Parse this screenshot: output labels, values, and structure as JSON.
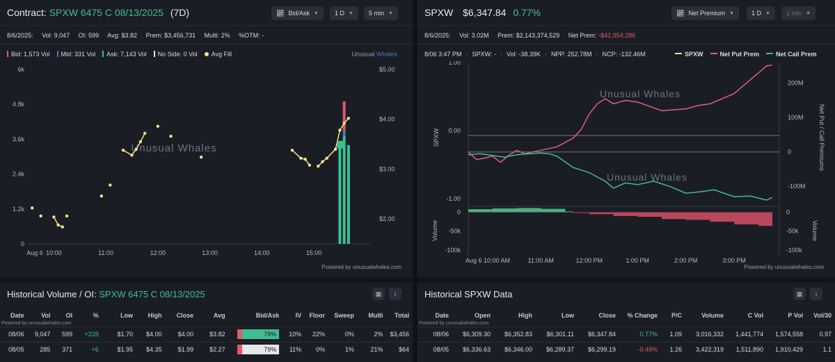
{
  "contract_panel": {
    "title_prefix": "Contract:",
    "contract": "SPXW 6475 C 08/13/2025",
    "dte": "(7D)",
    "controls": {
      "chart_type": "Bid/Ask",
      "range": "1 D",
      "interval": "5 min"
    },
    "stats": {
      "date": "8/6/2025:",
      "vol": "Vol: 9,047",
      "oi": "OI: 599",
      "avg": "Avg: $3.82",
      "prem": "Prem: $3,456,731",
      "multi": "Multi: 2%",
      "otm": "%OTM: -"
    },
    "legend": {
      "bid": "Bid: 1,573 Vol",
      "mid": "Mid: 331 Vol",
      "ask": "Ask: 7,143 Vol",
      "no_side": "No Side: 0 Vol",
      "avg_fill": "Avg Fill"
    },
    "brand_a": "Unusual",
    "brand_b": "Whales",
    "watermark": "Unusual Whales",
    "powered": "Powered by unusualwhales.com",
    "colors": {
      "bid": "#e05a6a",
      "mid": "#4b79b5",
      "ask": "#3fbf91",
      "avg_fill": "#f2e28b"
    }
  },
  "spxw_panel": {
    "ticker": "SPXW",
    "price": "$6,347.84",
    "change": "0.77%",
    "controls": {
      "metric": "Net Premium",
      "range": "1 D",
      "interval": "1 min"
    },
    "stats": {
      "date": "8/6/2025:",
      "vol": "Vol: 3.02M",
      "prem": "Prem: $2,143,374,529",
      "net_prem_label": "Net Prem:",
      "net_prem_value": "-$41,954,286"
    },
    "tooltip": {
      "time": "8/06 3:47 PM",
      "spxw": "SPXW: -",
      "vol": "Vol: -38.39K",
      "npp": "NPP: 252.78M",
      "ncp": "NCP: -132.46M"
    },
    "legend": {
      "spxw": "SPXW",
      "npp": "Net Put Prem",
      "ncp": "Net Call Prem"
    },
    "watermark": "Unusual Whales",
    "powered": "Powered by unusualwhales.com",
    "colors": {
      "spxw": "#f2e28b",
      "npp": "#e0607a",
      "ncp": "#3fbf91"
    }
  },
  "hist_contract": {
    "title_prefix": "Historical Volume / OI:",
    "contract": "SPXW 6475 C 08/13/2025",
    "powered": "Powered by unusualwhales.com",
    "columns": [
      "Date",
      "Vol",
      "OI",
      "%",
      "Low",
      "High",
      "Close",
      "Avg",
      "Bid/Ask",
      "IV",
      "Floor",
      "Sweep",
      "Multi",
      "Total"
    ],
    "rows": [
      {
        "date": "08/06",
        "vol": "9,047",
        "oi": "599",
        "chg": "+228",
        "low": "$1.70",
        "high": "$4.00",
        "close": "$4.00",
        "avg": "$3.82",
        "ba": "79%",
        "iv": "10%",
        "floor": "22%",
        "sweep": "0%",
        "multi": "2%",
        "total": "$3,456"
      },
      {
        "date": "08/05",
        "vol": "285",
        "oi": "371",
        "chg": "+6",
        "low": "$1.95",
        "high": "$4.35",
        "close": "$1.99",
        "avg": "$2.27",
        "ba": "79%",
        "iv": "11%",
        "floor": "0%",
        "sweep": "1%",
        "multi": "21%",
        "total": "$64"
      }
    ]
  },
  "hist_spxw": {
    "title": "Historical SPXW Data",
    "powered": "Powered by unusualwhales.com",
    "columns": [
      "Date",
      "Open",
      "High",
      "Low",
      "Close",
      "% Change",
      "P/C",
      "Volume",
      "C Vol",
      "P Vol",
      "Vol/30"
    ],
    "rows": [
      {
        "date": "08/06",
        "open": "$6,309.30",
        "high": "$6,352.83",
        "low": "$6,301.11",
        "close": "$6,347.84",
        "chg": "0.77%",
        "pc": "1.09",
        "volume": "3,016,332",
        "cvol": "1,441,774",
        "pvol": "1,574,558",
        "v30": "0.97"
      },
      {
        "date": "08/05",
        "open": "$6,336.63",
        "high": "$6,346.00",
        "low": "$6,289.37",
        "close": "$6,299.19",
        "chg": "-0.49%",
        "pc": "1.26",
        "volume": "3,422,319",
        "cvol": "1,511,890",
        "pvol": "1,910,429",
        "v30": "1.1"
      }
    ]
  },
  "chart_data": [
    {
      "type": "scatter",
      "title": "",
      "x_ticks": [
        "Aug 6",
        "10:00",
        "11:00",
        "12:00",
        "13:00",
        "14:00",
        "15:00"
      ],
      "y_left_ticks": [
        "0",
        "1.2k",
        "2.4k",
        "3.6k",
        "4.8k",
        "6k"
      ],
      "y_right_ticks": [
        "$2.00",
        "$3.00",
        "$4.00",
        "$5.00"
      ],
      "ylim_volume": [
        0,
        6000
      ],
      "ylim_price": [
        1.5,
        5.0
      ],
      "series": [
        {
          "name": "Avg Fill",
          "points": [
            [
              "09:35",
              2.22
            ],
            [
              "09:45",
              2.06
            ],
            [
              "10:00",
              2.04
            ],
            [
              "10:05",
              1.88
            ],
            [
              "10:10",
              1.84
            ],
            [
              "10:15",
              2.06
            ],
            [
              "10:55",
              2.46
            ],
            [
              "11:05",
              2.68
            ],
            [
              "11:20",
              3.38
            ],
            [
              "11:30",
              3.28
            ],
            [
              "11:35",
              3.4
            ],
            [
              "11:40",
              3.55
            ],
            [
              "11:45",
              3.72
            ],
            [
              "12:00",
              3.86
            ],
            [
              "12:15",
              3.66
            ],
            [
              "12:50",
              3.24
            ],
            [
              "14:35",
              3.38
            ],
            [
              "14:45",
              3.22
            ],
            [
              "14:50",
              3.2
            ],
            [
              "14:55",
              3.08
            ],
            [
              "15:05",
              3.06
            ],
            [
              "15:10",
              3.15
            ],
            [
              "15:15",
              3.22
            ],
            [
              "15:25",
              3.4
            ],
            [
              "15:30",
              3.78
            ],
            [
              "15:35",
              3.92
            ],
            [
              "15:40",
              4.02
            ]
          ]
        }
      ],
      "volume_bars": [
        {
          "time": "15:30",
          "bid": 0,
          "mid": 0,
          "ask": 3300
        },
        {
          "time": "15:35",
          "bid": 1000,
          "mid": 200,
          "ask": 3700
        },
        {
          "time": "15:40",
          "bid": 0,
          "mid": 0,
          "ask": 3400
        }
      ]
    },
    {
      "type": "line",
      "title": "",
      "x_ticks": [
        "Aug 6 10:00 AM",
        "11:00 AM",
        "12:00 PM",
        "1:00 PM",
        "2:00 PM",
        "3:00 PM"
      ],
      "y_left_label": "SPXW",
      "y_left_ticks": [
        "-1.00",
        "0.00",
        "1.00"
      ],
      "y_right_label": "Net Put / Call Premiums",
      "y_right_ticks": [
        "-100M",
        "0",
        "100M",
        "200M"
      ],
      "ylim_premium": [
        -150,
        260
      ],
      "series": [
        {
          "name": "Net Put Prem",
          "points": [
            [
              "09:30",
              0
            ],
            [
              "09:40",
              -22
            ],
            [
              "09:50",
              -18
            ],
            [
              "10:00",
              -12
            ],
            [
              "10:10",
              -30
            ],
            [
              "10:20",
              -10
            ],
            [
              "10:30",
              5
            ],
            [
              "10:40",
              -5
            ],
            [
              "11:00",
              5
            ],
            [
              "11:20",
              15
            ],
            [
              "11:40",
              40
            ],
            [
              "11:50",
              65
            ],
            [
              "12:00",
              110
            ],
            [
              "12:10",
              140
            ],
            [
              "12:20",
              155
            ],
            [
              "12:30",
              140
            ],
            [
              "12:45",
              150
            ],
            [
              "13:00",
              145
            ],
            [
              "13:30",
              120
            ],
            [
              "14:00",
              125
            ],
            [
              "14:15",
              135
            ],
            [
              "14:30",
              140
            ],
            [
              "14:45",
              155
            ],
            [
              "15:00",
              170
            ],
            [
              "15:15",
              200
            ],
            [
              "15:30",
              230
            ],
            [
              "15:40",
              250
            ],
            [
              "15:47",
              252.78
            ]
          ]
        },
        {
          "name": "Net Call Prem",
          "points": [
            [
              "09:30",
              -8
            ],
            [
              "09:45",
              -5
            ],
            [
              "10:00",
              -10
            ],
            [
              "10:15",
              -15
            ],
            [
              "10:30",
              -8
            ],
            [
              "11:00",
              -3
            ],
            [
              "11:10",
              -5
            ],
            [
              "11:20",
              -12
            ],
            [
              "11:40",
              -45
            ],
            [
              "12:00",
              -60
            ],
            [
              "12:20",
              -85
            ],
            [
              "12:30",
              -105
            ],
            [
              "12:45",
              -90
            ],
            [
              "13:00",
              -95
            ],
            [
              "13:20",
              -85
            ],
            [
              "13:40",
              -100
            ],
            [
              "14:00",
              -120
            ],
            [
              "14:20",
              -115
            ],
            [
              "14:35",
              -110
            ],
            [
              "15:00",
              -130
            ],
            [
              "15:20",
              -128
            ],
            [
              "15:40",
              -140
            ],
            [
              "15:47",
              -132.46
            ]
          ]
        }
      ],
      "volume_panel": {
        "label": "Volume",
        "ticks": [
          "0",
          "-50k",
          "-100k"
        ],
        "ylim": [
          -100,
          10
        ],
        "points": [
          [
            "09:30",
            8
          ],
          [
            "10:00",
            10
          ],
          [
            "10:30",
            11
          ],
          [
            "11:00",
            9
          ],
          [
            "11:30",
            2
          ],
          [
            "11:40",
            -2
          ],
          [
            "12:00",
            -5
          ],
          [
            "12:30",
            -10
          ],
          [
            "13:00",
            -12
          ],
          [
            "13:30",
            -18
          ],
          [
            "14:00",
            -20
          ],
          [
            "14:30",
            -25
          ],
          [
            "15:00",
            -32
          ],
          [
            "15:30",
            -36
          ],
          [
            "15:47",
            -38.39
          ]
        ]
      }
    }
  ]
}
